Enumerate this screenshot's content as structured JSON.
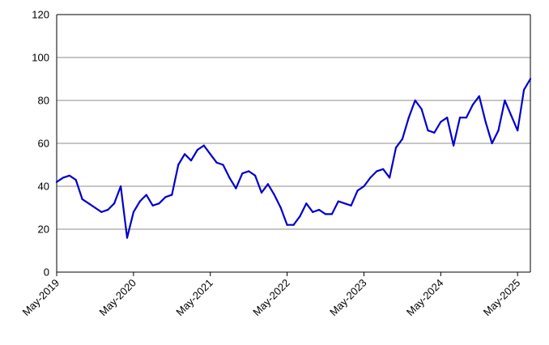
{
  "chart_data": {
    "type": "line",
    "title": "",
    "xlabel": "",
    "ylabel": "",
    "ylim": [
      0,
      120
    ],
    "y_ticks": [
      "0",
      "20",
      "40",
      "60",
      "80",
      "100",
      "120"
    ],
    "x_ticks": [
      "May-2019",
      "May-2020",
      "May-2021",
      "May-2022",
      "May-2023",
      "May-2024",
      "May-2025"
    ],
    "x_range": [
      "2019-05",
      "2025-07"
    ],
    "grid": "horizontal",
    "legend": "none",
    "series": [
      {
        "color": "#0000CC",
        "x": [
          "2019-05",
          "2019-06",
          "2019-07",
          "2019-08",
          "2019-09",
          "2019-10",
          "2019-11",
          "2019-12",
          "2020-01",
          "2020-02",
          "2020-03",
          "2020-04",
          "2020-05",
          "2020-06",
          "2020-07",
          "2020-08",
          "2020-09",
          "2020-10",
          "2020-11",
          "2020-12",
          "2021-01",
          "2021-02",
          "2021-03",
          "2021-04",
          "2021-05",
          "2021-06",
          "2021-07",
          "2021-08",
          "2021-09",
          "2021-10",
          "2021-11",
          "2021-12",
          "2022-01",
          "2022-02",
          "2022-03",
          "2022-04",
          "2022-05",
          "2022-06",
          "2022-07",
          "2022-08",
          "2022-09",
          "2022-10",
          "2022-11",
          "2022-12",
          "2023-01",
          "2023-02",
          "2023-03",
          "2023-04",
          "2023-05",
          "2023-06",
          "2023-07",
          "2023-08",
          "2023-09",
          "2023-10",
          "2023-11",
          "2023-12",
          "2024-01",
          "2024-02",
          "2024-03",
          "2024-04",
          "2024-05",
          "2024-06",
          "2024-07",
          "2024-08",
          "2024-09",
          "2024-10",
          "2024-11",
          "2024-12",
          "2025-01",
          "2025-02",
          "2025-03",
          "2025-04",
          "2025-05",
          "2025-06",
          "2025-07"
        ],
        "values": [
          42,
          44,
          45,
          43,
          34,
          32,
          30,
          28,
          29,
          32,
          40,
          16,
          28,
          33,
          36,
          31,
          32,
          35,
          36,
          50,
          55,
          52,
          57,
          59,
          55,
          51,
          50,
          44,
          39,
          46,
          47,
          45,
          37,
          41,
          36,
          30,
          22,
          22,
          26,
          32,
          28,
          29,
          27,
          27,
          33,
          32,
          31,
          38,
          40,
          44,
          47,
          48,
          44,
          58,
          62,
          72,
          80,
          76,
          66,
          65,
          70,
          72,
          59,
          72,
          72,
          78,
          82,
          70,
          60,
          66,
          80,
          73,
          66,
          85,
          90
        ]
      }
    ]
  }
}
